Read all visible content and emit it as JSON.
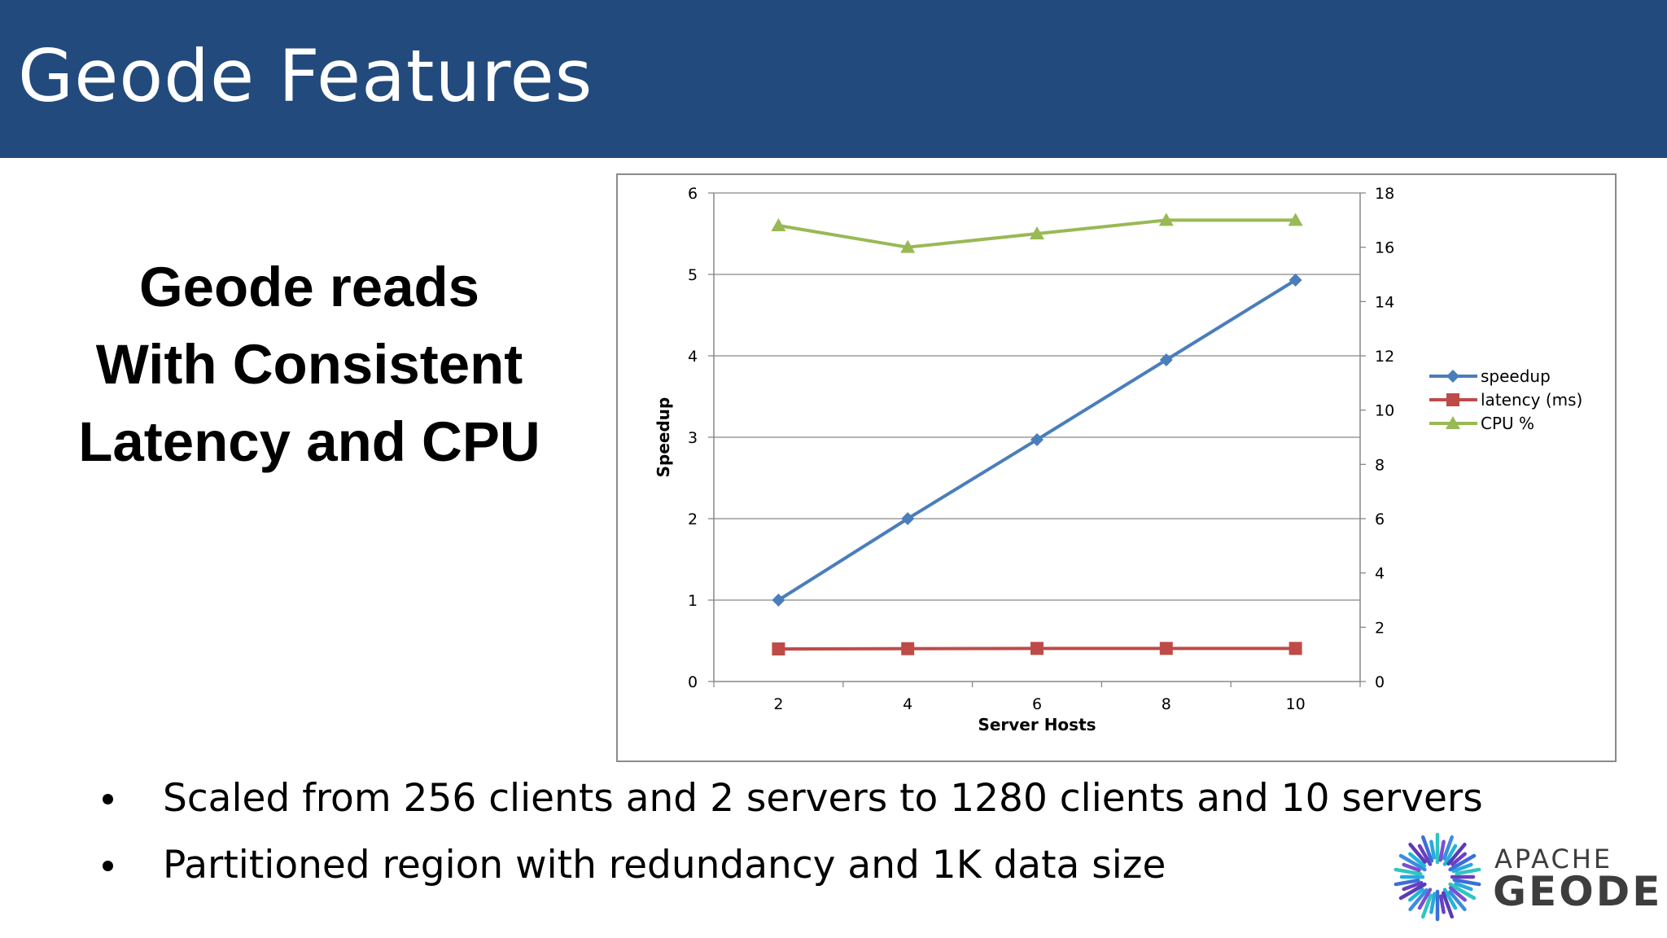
{
  "header": {
    "title": "Geode Features"
  },
  "headline": {
    "lines": [
      "Geode reads",
      "With Consistent",
      "Latency and CPU"
    ]
  },
  "bullets": [
    "Scaled from 256 clients and 2 servers to 1280 clients and 10 servers",
    "Partitioned region with redundancy and 1K data size"
  ],
  "logo": {
    "top_text": "APACHE",
    "bottom_text": "GEODE",
    "icon": "geode-burst-icon"
  },
  "colors": {
    "header_bg": "#224a7c",
    "speedup": "#4a7ebb",
    "latency": "#be4b48",
    "cpu": "#98b954"
  },
  "chart_data": {
    "type": "line",
    "title": "",
    "xlabel": "Server Hosts",
    "ylabel": "Speedup",
    "y2label": "",
    "categories": [
      "2",
      "4",
      "6",
      "8",
      "10"
    ],
    "ylim": [
      0,
      6
    ],
    "y2lim": [
      0,
      18
    ],
    "yticks": [
      "0",
      "1",
      "2",
      "3",
      "4",
      "5",
      "6"
    ],
    "y2ticks": [
      "0",
      "2",
      "4",
      "6",
      "8",
      "10",
      "12",
      "14",
      "16",
      "18"
    ],
    "grid": true,
    "legend_position": "right",
    "series": [
      {
        "name": "speedup",
        "axis": "left",
        "marker": "diamond",
        "color": "#4a7ebb",
        "values": [
          1.0,
          2.0,
          2.97,
          3.95,
          4.93
        ]
      },
      {
        "name": "latency (ms)",
        "axis": "right",
        "marker": "square",
        "color": "#be4b48",
        "values": [
          1.2,
          1.21,
          1.22,
          1.22,
          1.22
        ]
      },
      {
        "name": "CPU %",
        "axis": "right",
        "marker": "triangle",
        "color": "#98b954",
        "values": [
          16.8,
          16.0,
          16.5,
          17.0,
          17.0
        ]
      }
    ]
  }
}
